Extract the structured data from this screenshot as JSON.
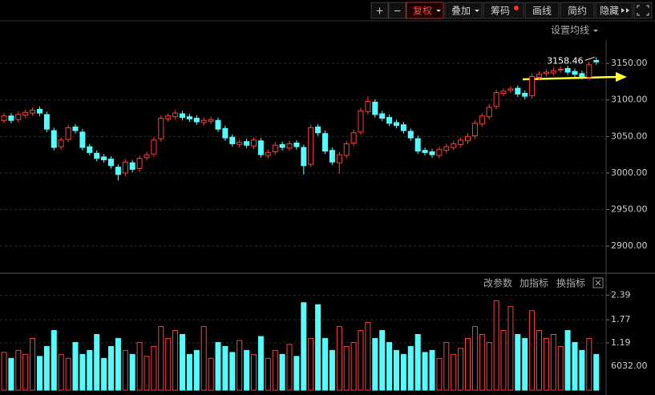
{
  "toolbar": {
    "buttons": [
      "+",
      "−",
      "复权",
      "叠加",
      "筹码",
      "画线",
      "简约",
      "隐藏"
    ]
  },
  "ma_setting": "设置均线",
  "indicator_menu": [
    "改参数",
    "加指标",
    "换指标"
  ],
  "chart_data": [
    {
      "type": "candlestick",
      "up_color": "#ff3c3c",
      "down_color": "#54fcfc",
      "grid": true,
      "open": [
        3072,
        3078,
        3073,
        3079,
        3082,
        3087,
        3080,
        3058,
        3036,
        3046,
        3063,
        3056,
        3036,
        3027,
        3022,
        3019,
        3008,
        3000,
        3014,
        3006,
        3021,
        3026,
        3047,
        3074,
        3077,
        3081,
        3077,
        3075,
        3069,
        3071,
        3072,
        3061,
        3049,
        3039,
        3043,
        3037,
        3044,
        3024,
        3029,
        3039,
        3034,
        3041,
        3035,
        3012,
        3063,
        3054,
        3031,
        3014,
        3024,
        3041,
        3056,
        3084,
        3097,
        3081,
        3076,
        3069,
        3066,
        3057,
        3047,
        3031,
        3029,
        3024,
        3031,
        3035,
        3039,
        3044,
        3051,
        3067,
        3077,
        3091,
        3109,
        3113,
        3116,
        3109,
        3106,
        3131,
        3136,
        3137,
        3141,
        3143,
        3139,
        3136,
        3131,
        3154
      ],
      "high": [
        3082,
        3082,
        3084,
        3087,
        3090,
        3091,
        3084,
        3062,
        3049,
        3066,
        3067,
        3060,
        3040,
        3031,
        3026,
        3023,
        3012,
        3019,
        3018,
        3024,
        3029,
        3049,
        3079,
        3082,
        3086,
        3085,
        3081,
        3079,
        3076,
        3077,
        3076,
        3065,
        3053,
        3046,
        3047,
        3049,
        3048,
        3032,
        3042,
        3043,
        3044,
        3045,
        3039,
        3066,
        3067,
        3058,
        3035,
        3029,
        3044,
        3059,
        3089,
        3105,
        3101,
        3085,
        3080,
        3073,
        3070,
        3061,
        3051,
        3035,
        3033,
        3036,
        3040,
        3044,
        3049,
        3054,
        3072,
        3082,
        3094,
        3114,
        3116,
        3119,
        3120,
        3113,
        3136,
        3139,
        3142,
        3144,
        3146,
        3147,
        3143,
        3140,
        3152,
        3158.46
      ],
      "low": [
        3068,
        3068,
        3069,
        3075,
        3078,
        3078,
        3056,
        3031,
        3032,
        3042,
        3054,
        3031,
        3024,
        3016,
        3014,
        3006,
        2990,
        2996,
        3001,
        3002,
        3017,
        3022,
        3043,
        3070,
        3073,
        3072,
        3070,
        3066,
        3065,
        3067,
        3056,
        3044,
        3036,
        3035,
        3034,
        3033,
        3021,
        3020,
        3025,
        3031,
        3030,
        3032,
        2998,
        3008,
        3051,
        3026,
        3011,
        2999,
        3020,
        3037,
        3052,
        3080,
        3076,
        3071,
        3064,
        3061,
        3054,
        3044,
        3026,
        3024,
        3021,
        3020,
        3027,
        3031,
        3035,
        3040,
        3047,
        3063,
        3073,
        3087,
        3105,
        3109,
        3104,
        3101,
        3102,
        3127,
        3132,
        3133,
        3137,
        3134,
        3131,
        3128,
        3127,
        3148
      ],
      "close": [
        3078,
        3072,
        3080,
        3083,
        3086,
        3082,
        3060,
        3035,
        3045,
        3062,
        3058,
        3035,
        3028,
        3020,
        3018,
        3010,
        2998,
        3015,
        3005,
        3020,
        3025,
        3045,
        3075,
        3078,
        3082,
        3076,
        3074,
        3070,
        3072,
        3073,
        3060,
        3048,
        3040,
        3042,
        3038,
        3045,
        3025,
        3028,
        3038,
        3035,
        3040,
        3036,
        3010,
        3062,
        3055,
        3030,
        3015,
        3025,
        3040,
        3055,
        3085,
        3098,
        3080,
        3075,
        3068,
        3065,
        3058,
        3048,
        3030,
        3028,
        3025,
        3032,
        3036,
        3040,
        3045,
        3050,
        3068,
        3078,
        3090,
        3110,
        3112,
        3115,
        3108,
        3105,
        3132,
        3135,
        3138,
        3140,
        3142,
        3138,
        3135,
        3132,
        3148,
        3152
      ],
      "ylim": [
        2864,
        3206
      ],
      "yticks": [
        {
          "value": 3150,
          "label": "3150.00"
        },
        {
          "value": 3100,
          "label": "3100.00"
        },
        {
          "value": 3050,
          "label": "3050.00"
        },
        {
          "value": 3000,
          "label": "3000.00"
        },
        {
          "value": 2950,
          "label": "2950.00"
        },
        {
          "value": 2900,
          "label": "2900.00"
        }
      ]
    },
    {
      "type": "bar",
      "axis_note": "6032.00",
      "grid": true,
      "values": [
        0.95,
        0.8,
        1.0,
        0.9,
        1.3,
        0.85,
        1.1,
        1.5,
        0.9,
        0.8,
        1.2,
        0.9,
        1.0,
        1.4,
        0.8,
        1.1,
        1.3,
        1.0,
        0.9,
        1.2,
        0.85,
        1.1,
        1.6,
        1.3,
        1.5,
        1.4,
        0.9,
        1.0,
        1.6,
        0.8,
        1.2,
        1.1,
        0.95,
        1.25,
        1.0,
        0.9,
        1.35,
        0.8,
        1.0,
        0.9,
        1.15,
        0.85,
        2.2,
        1.3,
        2.15,
        1.3,
        1.0,
        1.6,
        1.1,
        1.2,
        1.5,
        1.7,
        1.3,
        1.5,
        1.2,
        1.0,
        0.9,
        1.1,
        1.4,
        0.95,
        1.0,
        0.8,
        1.2,
        0.9,
        1.05,
        1.3,
        1.6,
        1.4,
        1.2,
        2.25,
        1.5,
        2.1,
        1.4,
        1.3,
        2.0,
        1.5,
        1.3,
        1.4,
        1.1,
        1.5,
        1.2,
        1.0,
        1.3,
        0.9
      ],
      "ylim": [
        0,
        2.8
      ],
      "yticks": [
        2.39,
        1.77,
        1.19
      ]
    }
  ]
}
